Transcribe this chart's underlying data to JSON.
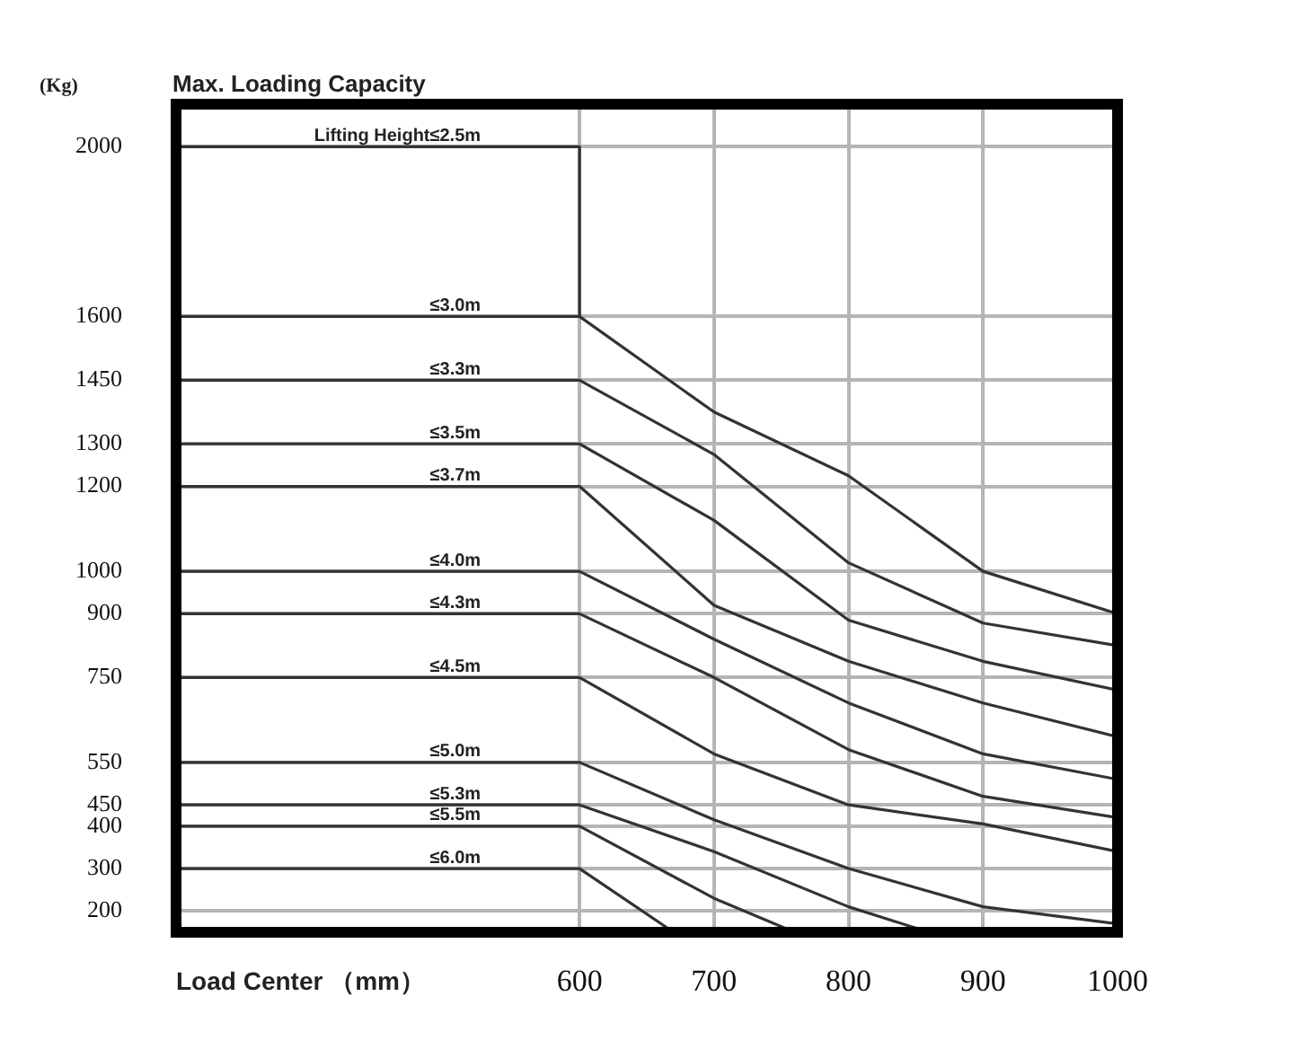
{
  "chart_data": {
    "type": "line",
    "title": "Max. Loading Capacity",
    "xlabel": "Load Center （mm）",
    "ylabel": "(Kg)",
    "xlim": [
      300,
      1000
    ],
    "xticks": [
      600,
      700,
      800,
      900,
      1000
    ],
    "ylim": [
      150,
      2100
    ],
    "yticks": [
      2000,
      1600,
      1450,
      1300,
      1200,
      1000,
      900,
      750,
      550,
      450,
      400,
      300,
      200
    ],
    "grid": true,
    "legend": false,
    "marker": "none",
    "line_style": "solid",
    "series": [
      {
        "name": "Lifting Height≤2.5m",
        "color": "#333333",
        "x": [
          300,
          600,
          600
        ],
        "values": [
          2000,
          2000,
          1600
        ]
      },
      {
        "name": "≤3.0m",
        "color": "#333333",
        "x": [
          300,
          600,
          700,
          800,
          900,
          1000
        ],
        "values": [
          1600,
          1600,
          1375,
          1225,
          1000,
          900
        ]
      },
      {
        "name": "≤3.3m",
        "color": "#333333",
        "x": [
          300,
          600,
          700,
          800,
          900,
          1000
        ],
        "values": [
          1450,
          1450,
          1275,
          1020,
          878,
          825
        ]
      },
      {
        "name": "≤3.5m",
        "color": "#333333",
        "x": [
          300,
          600,
          700,
          800,
          900,
          1000
        ],
        "values": [
          1300,
          1300,
          1120,
          885,
          788,
          720
        ]
      },
      {
        "name": "≤3.7m",
        "color": "#333333",
        "x": [
          300,
          600,
          700,
          800,
          900,
          1000
        ],
        "values": [
          1200,
          1200,
          920,
          788,
          690,
          610
        ]
      },
      {
        "name": "≤4.0m",
        "color": "#333333",
        "x": [
          300,
          600,
          700,
          800,
          900,
          1000
        ],
        "values": [
          1000,
          1000,
          840,
          690,
          570,
          510
        ]
      },
      {
        "name": "≤4.3m",
        "color": "#333333",
        "x": [
          300,
          600,
          700,
          800,
          900,
          1000
        ],
        "values": [
          900,
          900,
          750,
          580,
          470,
          420
        ]
      },
      {
        "name": "≤4.5m",
        "color": "#333333",
        "x": [
          300,
          600,
          700,
          800,
          900,
          1000
        ],
        "values": [
          750,
          750,
          570,
          450,
          405,
          340
        ]
      },
      {
        "name": "≤5.0m",
        "color": "#333333",
        "x": [
          300,
          600,
          700,
          800,
          900,
          1000
        ],
        "values": [
          550,
          550,
          415,
          300,
          210,
          170
        ]
      },
      {
        "name": "≤5.3m",
        "color": "#333333",
        "x": [
          300,
          600,
          700,
          800,
          860
        ],
        "values": [
          450,
          450,
          340,
          210,
          150
        ]
      },
      {
        "name": "≤5.5m",
        "color": "#333333",
        "x": [
          300,
          600,
          700,
          760
        ],
        "values": [
          400,
          400,
          230,
          150
        ]
      },
      {
        "name": "≤6.0m",
        "color": "#333333",
        "x": [
          300,
          600,
          670
        ],
        "values": [
          300,
          300,
          150
        ]
      }
    ]
  }
}
